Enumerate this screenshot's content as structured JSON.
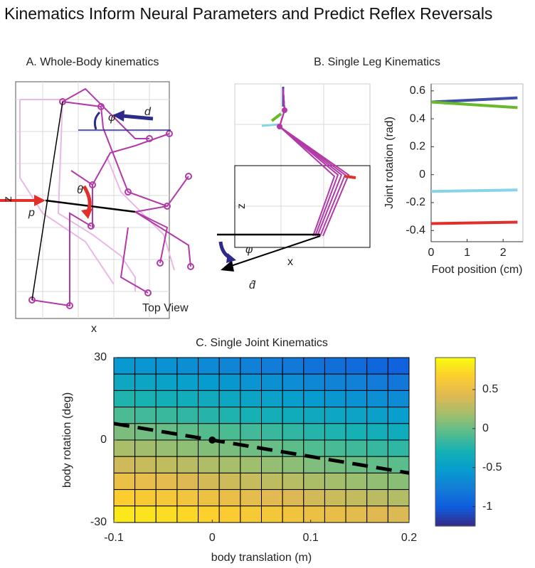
{
  "title": "Kinematics Inform Neural Parameters and Predict Reflex Reversals",
  "chart_data": [
    {
      "type": "diagram",
      "title": "A. Whole-Body kinematics",
      "xlabel": "x",
      "ylabel": "z",
      "annotations": [
        "p",
        "θ",
        "φ",
        "d",
        "Top View"
      ]
    },
    {
      "type": "diagram",
      "title": "B. Single Leg Kinematics",
      "xlabel": "x",
      "ylabel": "z",
      "annotations": [
        "φ",
        "d̂"
      ]
    },
    {
      "type": "line",
      "xlabel": "Foot position (cm)",
      "ylabel": "Joint rotation (rad)",
      "x": [
        0,
        2.4
      ],
      "series": [
        {
          "color": "#3f4fa8",
          "values": [
            0.52,
            0.55
          ]
        },
        {
          "color": "#6ab82b",
          "values": [
            0.52,
            0.48
          ]
        },
        {
          "color": "#88d4e6",
          "values": [
            -0.12,
            -0.11
          ]
        },
        {
          "color": "#e0302a",
          "values": [
            -0.35,
            -0.34
          ]
        }
      ],
      "xlim": [
        0,
        2.55
      ],
      "xticks": [
        0,
        1,
        2
      ],
      "ylim": [
        -0.48,
        0.65
      ],
      "yticks": [
        -0.4,
        -0.2,
        0,
        0.2,
        0.4,
        0.6
      ]
    },
    {
      "type": "heatmap",
      "title": "C. Single Joint Kinematics",
      "xlabel": "body translation (m)",
      "ylabel": "body rotation (deg)",
      "xlim": [
        -0.1,
        0.2
      ],
      "xticks": [
        -0.1,
        0,
        0.1,
        0.2
      ],
      "ylim": [
        -30,
        30
      ],
      "yticks": [
        -30,
        0,
        30
      ],
      "clim": [
        -1.25,
        0.91
      ],
      "cticks": [
        -1,
        -0.5,
        0,
        0.5
      ],
      "values": [
        [
          -0.55,
          -0.58,
          -0.61,
          -0.64,
          -0.68,
          -0.71,
          -0.74,
          -0.77,
          -0.8,
          -0.84,
          -0.87,
          -0.9,
          -0.93,
          -0.96
        ],
        [
          -0.4,
          -0.43,
          -0.46,
          -0.49,
          -0.53,
          -0.56,
          -0.59,
          -0.62,
          -0.65,
          -0.69,
          -0.72,
          -0.75,
          -0.78,
          -0.81
        ],
        [
          -0.25,
          -0.28,
          -0.31,
          -0.34,
          -0.38,
          -0.41,
          -0.44,
          -0.47,
          -0.5,
          -0.54,
          -0.57,
          -0.6,
          -0.63,
          -0.66
        ],
        [
          -0.1,
          -0.13,
          -0.16,
          -0.19,
          -0.23,
          -0.26,
          -0.29,
          -0.32,
          -0.35,
          -0.39,
          -0.42,
          -0.45,
          -0.48,
          -0.51
        ],
        [
          0.06,
          0.03,
          0.0,
          -0.03,
          -0.07,
          -0.1,
          -0.13,
          -0.16,
          -0.19,
          -0.23,
          -0.26,
          -0.29,
          -0.32,
          -0.35
        ],
        [
          0.21,
          0.18,
          0.15,
          0.12,
          0.08,
          0.05,
          0.02,
          -0.01,
          -0.04,
          -0.08,
          -0.11,
          -0.14,
          -0.17,
          -0.2
        ],
        [
          0.36,
          0.33,
          0.3,
          0.27,
          0.23,
          0.2,
          0.17,
          0.14,
          0.11,
          0.07,
          0.04,
          0.01,
          -0.02,
          -0.05
        ],
        [
          0.51,
          0.48,
          0.45,
          0.42,
          0.38,
          0.35,
          0.32,
          0.29,
          0.26,
          0.22,
          0.19,
          0.16,
          0.13,
          0.1
        ],
        [
          0.66,
          0.63,
          0.6,
          0.57,
          0.53,
          0.5,
          0.47,
          0.44,
          0.41,
          0.37,
          0.34,
          0.31,
          0.28,
          0.25
        ],
        [
          0.81,
          0.78,
          0.75,
          0.72,
          0.68,
          0.65,
          0.62,
          0.59,
          0.56,
          0.52,
          0.49,
          0.46,
          0.43,
          0.4
        ]
      ],
      "zero_line": {
        "x": [
          -0.1,
          0.2
        ],
        "y": [
          6,
          -12
        ]
      },
      "point": {
        "x": 0,
        "y": 0
      }
    }
  ]
}
